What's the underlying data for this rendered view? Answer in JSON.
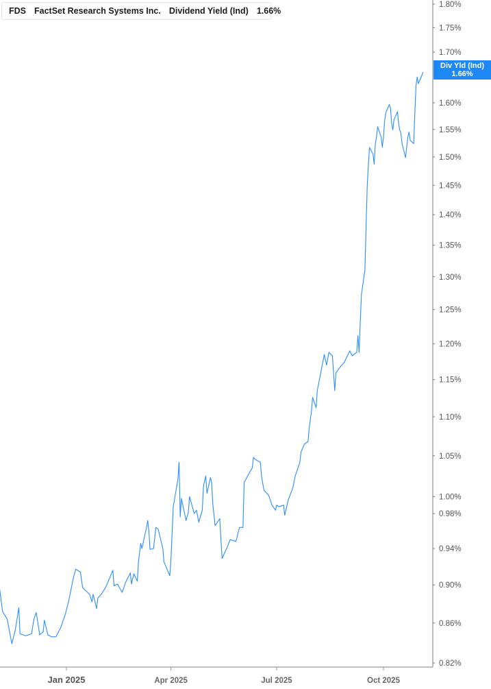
{
  "legend": {
    "ticker": "FDS",
    "company": "FactSet Research Systems Inc.",
    "metric": "Dividend Yield (Ind)",
    "value": "1.66%",
    "accent": "#1e88f7"
  },
  "last_label": {
    "title": "Div Yld (Ind)",
    "value": "1.66%"
  },
  "chart_data": {
    "type": "line",
    "title": "",
    "xlabel": "",
    "ylabel": "",
    "y_scale": "log",
    "ylim": [
      0.82,
      1.8
    ],
    "xlim": [
      "2024-11-04",
      "2025-11-15"
    ],
    "grid": false,
    "line_color": "#2a8cff",
    "y_ticks": [
      "1.80%",
      "1.75%",
      "1.70%",
      "1.60%",
      "1.55%",
      "1.50%",
      "1.45%",
      "1.40%",
      "1.35%",
      "1.30%",
      "1.25%",
      "1.20%",
      "1.15%",
      "1.10%",
      "1.05%",
      "1.00%",
      "0.98%",
      "0.94%",
      "0.90%",
      "0.86%",
      "0.82%"
    ],
    "y_tick_values": [
      1.8,
      1.75,
      1.7,
      1.6,
      1.55,
      1.5,
      1.45,
      1.4,
      1.35,
      1.3,
      1.25,
      1.2,
      1.15,
      1.1,
      1.05,
      1.0,
      0.98,
      0.94,
      0.9,
      0.86,
      0.82
    ],
    "x_ticks": [
      {
        "label": "Jan 2025",
        "date": "2025-01-01",
        "major": true
      },
      {
        "label": "Apr 2025",
        "date": "2025-04-01",
        "major": false
      },
      {
        "label": "Jul 2025",
        "date": "2025-07-01",
        "major": false
      },
      {
        "label": "Oct 2025",
        "date": "2025-10-01",
        "major": false
      }
    ],
    "series": [
      {
        "points": [
          [
            "2024-11-04",
            0.901
          ],
          [
            "2024-11-07",
            0.872
          ],
          [
            "2024-11-11",
            0.864
          ],
          [
            "2024-11-15",
            0.839
          ],
          [
            "2024-11-18",
            0.853
          ],
          [
            "2024-11-21",
            0.876
          ],
          [
            "2024-11-22",
            0.849
          ],
          [
            "2024-11-27",
            0.847
          ],
          [
            "2024-12-02",
            0.849
          ],
          [
            "2024-12-04",
            0.864
          ],
          [
            "2024-12-06",
            0.871
          ],
          [
            "2024-12-09",
            0.848
          ],
          [
            "2024-12-12",
            0.851
          ],
          [
            "2024-12-13",
            0.863
          ],
          [
            "2024-12-16",
            0.848
          ],
          [
            "2024-12-19",
            0.846
          ],
          [
            "2024-12-23",
            0.846
          ],
          [
            "2024-12-27",
            0.855
          ],
          [
            "2024-12-31",
            0.869
          ],
          [
            "2025-01-03",
            0.883
          ],
          [
            "2025-01-07",
            0.908
          ],
          [
            "2025-01-09",
            0.917
          ],
          [
            "2025-01-13",
            0.914
          ],
          [
            "2025-01-15",
            0.897
          ],
          [
            "2025-01-21",
            0.89
          ],
          [
            "2025-01-23",
            0.882
          ],
          [
            "2025-01-24",
            0.89
          ],
          [
            "2025-01-27",
            0.875
          ],
          [
            "2025-01-28",
            0.886
          ],
          [
            "2025-01-31",
            0.89
          ],
          [
            "2025-02-04",
            0.898
          ],
          [
            "2025-02-10",
            0.916
          ],
          [
            "2025-02-11",
            0.899
          ],
          [
            "2025-02-14",
            0.901
          ],
          [
            "2025-02-18",
            0.892
          ],
          [
            "2025-02-21",
            0.903
          ],
          [
            "2025-02-25",
            0.913
          ],
          [
            "2025-02-26",
            0.901
          ],
          [
            "2025-02-28",
            0.912
          ],
          [
            "2025-03-03",
            0.904
          ],
          [
            "2025-03-04",
            0.925
          ],
          [
            "2025-03-06",
            0.946
          ],
          [
            "2025-03-07",
            0.94
          ],
          [
            "2025-03-11",
            0.964
          ],
          [
            "2025-03-12",
            0.972
          ],
          [
            "2025-03-13",
            0.96
          ],
          [
            "2025-03-14",
            0.939
          ],
          [
            "2025-03-17",
            0.94
          ],
          [
            "2025-03-19",
            0.964
          ],
          [
            "2025-03-21",
            0.962
          ],
          [
            "2025-03-25",
            0.94
          ],
          [
            "2025-03-26",
            0.925
          ],
          [
            "2025-03-31",
            0.91
          ],
          [
            "2025-04-01",
            0.927
          ],
          [
            "2025-04-03",
            0.988
          ],
          [
            "2025-04-07",
            1.021
          ],
          [
            "2025-04-08",
            1.042
          ],
          [
            "2025-04-09",
            0.976
          ],
          [
            "2025-04-10",
            0.998
          ],
          [
            "2025-04-14",
            0.972
          ],
          [
            "2025-04-16",
            0.982
          ],
          [
            "2025-04-17",
            1.0
          ],
          [
            "2025-04-21",
            0.98
          ],
          [
            "2025-04-23",
            0.984
          ],
          [
            "2025-04-25",
            0.97
          ],
          [
            "2025-04-28",
            0.984
          ],
          [
            "2025-04-29",
            1.013
          ],
          [
            "2025-05-01",
            1.025
          ],
          [
            "2025-05-02",
            1.004
          ],
          [
            "2025-05-05",
            1.023
          ],
          [
            "2025-05-06",
            1.017
          ],
          [
            "2025-05-07",
            0.992
          ],
          [
            "2025-05-09",
            0.966
          ],
          [
            "2025-05-13",
            0.974
          ],
          [
            "2025-05-15",
            0.929
          ],
          [
            "2025-05-19",
            0.94
          ],
          [
            "2025-05-22",
            0.95
          ],
          [
            "2025-05-27",
            0.948
          ],
          [
            "2025-05-30",
            0.964
          ],
          [
            "2025-06-02",
            0.964
          ],
          [
            "2025-06-03",
            1.017
          ],
          [
            "2025-06-06",
            1.025
          ],
          [
            "2025-06-10",
            1.035
          ],
          [
            "2025-06-11",
            1.048
          ],
          [
            "2025-06-13",
            1.045
          ],
          [
            "2025-06-17",
            1.042
          ],
          [
            "2025-06-18",
            1.025
          ],
          [
            "2025-06-20",
            1.008
          ],
          [
            "2025-06-24",
            1.002
          ],
          [
            "2025-06-27",
            0.99
          ],
          [
            "2025-06-30",
            0.984
          ],
          [
            "2025-07-01",
            0.99
          ],
          [
            "2025-07-03",
            0.988
          ],
          [
            "2025-07-07",
            0.99
          ],
          [
            "2025-07-08",
            0.978
          ],
          [
            "2025-07-11",
            0.996
          ],
          [
            "2025-07-15",
            1.011
          ],
          [
            "2025-07-17",
            1.025
          ],
          [
            "2025-07-21",
            1.042
          ],
          [
            "2025-07-22",
            1.055
          ],
          [
            "2025-07-25",
            1.065
          ],
          [
            "2025-07-28",
            1.068
          ],
          [
            "2025-07-29",
            1.085
          ],
          [
            "2025-07-31",
            1.107
          ],
          [
            "2025-08-01",
            1.126
          ],
          [
            "2025-08-04",
            1.112
          ],
          [
            "2025-08-05",
            1.135
          ],
          [
            "2025-08-08",
            1.159
          ],
          [
            "2025-08-11",
            1.185
          ],
          [
            "2025-08-13",
            1.17
          ],
          [
            "2025-08-15",
            1.188
          ],
          [
            "2025-08-18",
            1.183
          ],
          [
            "2025-08-19",
            1.159
          ],
          [
            "2025-08-20",
            1.135
          ],
          [
            "2025-08-21",
            1.159
          ],
          [
            "2025-08-25",
            1.168
          ],
          [
            "2025-08-28",
            1.173
          ],
          [
            "2025-09-02",
            1.19
          ],
          [
            "2025-09-04",
            1.183
          ],
          [
            "2025-09-08",
            1.188
          ],
          [
            "2025-09-09",
            1.212
          ],
          [
            "2025-09-10",
            1.188
          ],
          [
            "2025-09-11",
            1.232
          ],
          [
            "2025-09-12",
            1.273
          ],
          [
            "2025-09-15",
            1.311
          ],
          [
            "2025-09-16",
            1.381
          ],
          [
            "2025-09-17",
            1.45
          ],
          [
            "2025-09-18",
            1.487
          ],
          [
            "2025-09-19",
            1.517
          ],
          [
            "2025-09-22",
            1.505
          ],
          [
            "2025-09-23",
            1.487
          ],
          [
            "2025-09-24",
            1.524
          ],
          [
            "2025-09-25",
            1.536
          ],
          [
            "2025-09-26",
            1.555
          ],
          [
            "2025-09-29",
            1.536
          ],
          [
            "2025-09-30",
            1.517
          ],
          [
            "2025-10-01",
            1.536
          ],
          [
            "2025-10-02",
            1.567
          ],
          [
            "2025-10-03",
            1.581
          ],
          [
            "2025-10-06",
            1.597
          ],
          [
            "2025-10-07",
            1.59
          ],
          [
            "2025-10-08",
            1.562
          ],
          [
            "2025-10-09",
            1.549
          ],
          [
            "2025-10-10",
            1.568
          ],
          [
            "2025-10-13",
            1.583
          ],
          [
            "2025-10-14",
            1.562
          ],
          [
            "2025-10-15",
            1.549
          ],
          [
            "2025-10-16",
            1.543
          ],
          [
            "2025-10-17",
            1.524
          ],
          [
            "2025-10-20",
            1.499
          ],
          [
            "2025-10-21",
            1.517
          ],
          [
            "2025-10-22",
            1.536
          ],
          [
            "2025-10-23",
            1.545
          ],
          [
            "2025-10-24",
            1.53
          ],
          [
            "2025-10-27",
            1.524
          ],
          [
            "2025-10-28",
            1.581
          ],
          [
            "2025-10-29",
            1.633
          ],
          [
            "2025-10-30",
            1.65
          ],
          [
            "2025-10-31",
            1.637
          ],
          [
            "2025-11-03",
            1.653
          ],
          [
            "2025-11-04",
            1.66
          ]
        ]
      }
    ]
  }
}
